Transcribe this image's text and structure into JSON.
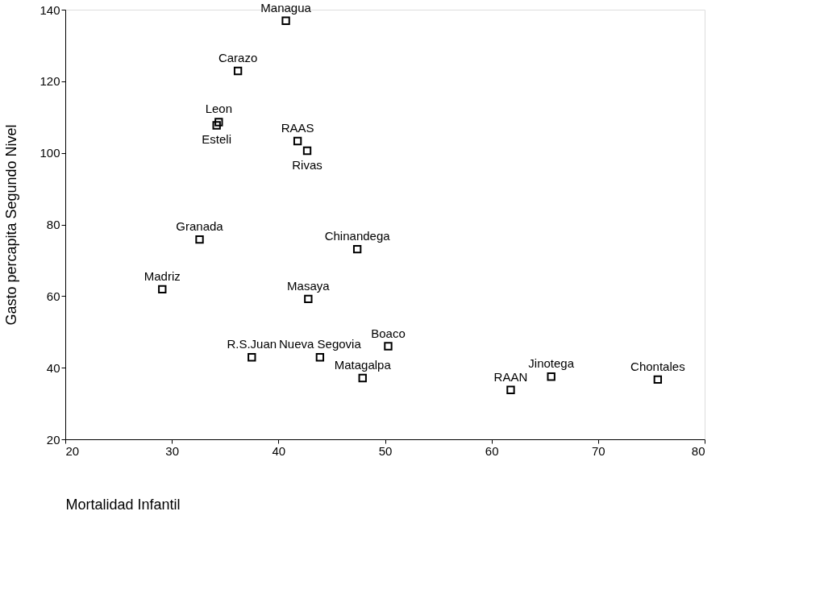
{
  "chart_data": {
    "type": "scatter",
    "xlabel": "Mortalidad Infantil",
    "ylabel": "Gasto percapita Segundo Nivel",
    "x": [
      40.7,
      36.2,
      34.4,
      34.2,
      41.8,
      42.7,
      32.6,
      47.4,
      29.1,
      42.8,
      50.3,
      37.5,
      43.9,
      47.9,
      61.8,
      65.6,
      75.6
    ],
    "series": [
      {
        "color": "#000000",
        "values": [
          136.9,
          122.9,
          108.6,
          107.7,
          103.3,
          100.6,
          75.8,
          73.1,
          61.9,
          59.2,
          46.0,
          42.9,
          42.9,
          37.1,
          33.8,
          37.5,
          36.7
        ]
      }
    ],
    "annotations": [
      {
        "text": "Managua",
        "x": 40.7,
        "y": 136.9
      },
      {
        "text": "Carazo",
        "x": 36.2,
        "y": 122.9
      },
      {
        "text": "Leon",
        "x": 34.4,
        "y": 108.6
      },
      {
        "text": "Esteli",
        "x": 34.2,
        "y": 107.7
      },
      {
        "text": "RAAS",
        "x": 41.8,
        "y": 103.3
      },
      {
        "text": "Rivas",
        "x": 42.7,
        "y": 100.6
      },
      {
        "text": "Granada",
        "x": 32.6,
        "y": 75.8
      },
      {
        "text": "Chinandega",
        "x": 47.4,
        "y": 73.1
      },
      {
        "text": "Madriz",
        "x": 29.1,
        "y": 61.9
      },
      {
        "text": "Masaya",
        "x": 42.8,
        "y": 59.2
      },
      {
        "text": "Boaco",
        "x": 50.3,
        "y": 46.0
      },
      {
        "text": "R.S.Juan",
        "x": 37.5,
        "y": 42.9
      },
      {
        "text": "Nueva Segovia",
        "x": 43.9,
        "y": 42.9
      },
      {
        "text": "Matagalpa",
        "x": 47.9,
        "y": 37.1
      },
      {
        "text": "RAAN",
        "x": 61.8,
        "y": 33.8
      },
      {
        "text": "Jinotega",
        "x": 65.6,
        "y": 37.5
      },
      {
        "text": "Chontales",
        "x": 75.6,
        "y": 36.7
      }
    ],
    "xlim": [
      20,
      80
    ],
    "xticks": [
      20,
      30,
      40,
      50,
      60,
      70,
      80
    ],
    "ylim": [
      20,
      140
    ],
    "yticks": [
      20,
      40,
      60,
      80,
      100,
      120,
      140
    ],
    "grid": false,
    "marker": "square"
  }
}
